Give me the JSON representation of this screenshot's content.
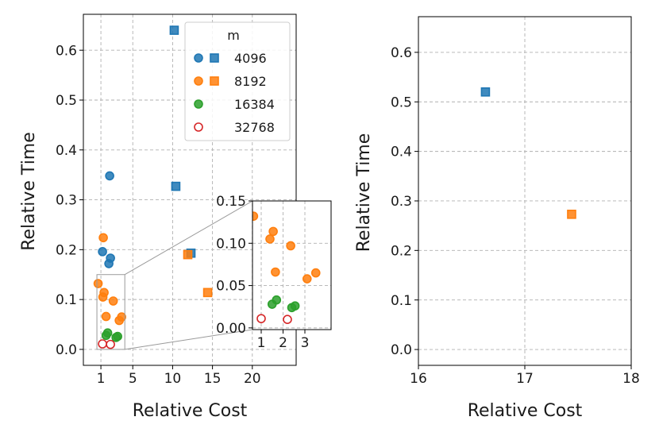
{
  "chart_data": [
    {
      "type": "scatter",
      "id": "left",
      "xlabel": "Relative Cost",
      "ylabel": "Relative Time",
      "xlim": [
        -1.2,
        25.5
      ],
      "ylim": [
        -0.032,
        0.672
      ],
      "xticks": [
        1,
        5,
        10,
        15,
        20
      ],
      "xtick_labels": [
        "1",
        "5",
        "10",
        "15",
        "20"
      ],
      "yticks": [
        0.0,
        0.1,
        0.2,
        0.3,
        0.4,
        0.5,
        0.6
      ],
      "ytick_labels": [
        "0.0",
        "0.1",
        "0.2",
        "0.3",
        "0.4",
        "0.5",
        "0.6"
      ],
      "grid": true,
      "legend": {
        "title": "m",
        "placement": "top-right",
        "entries": [
          {
            "label": "4096",
            "color": "#1f77b4",
            "markers": [
              "circle",
              "square"
            ]
          },
          {
            "label": "8192",
            "color": "#ff7f0e",
            "markers": [
              "circle",
              "square"
            ]
          },
          {
            "label": "16384",
            "color": "#2ca02c",
            "markers": [
              "circle"
            ]
          },
          {
            "label": "32768",
            "color": "#d62728",
            "markers": [
              "open-circle"
            ]
          }
        ]
      },
      "series": [
        {
          "name": "4096",
          "marker": "circle",
          "color": "#1f77b4",
          "points": [
            [
              1.2,
              0.196
            ],
            [
              2.0,
              0.172
            ],
            [
              2.2,
              0.183
            ],
            [
              2.1,
              0.348
            ]
          ]
        },
        {
          "name": "4096",
          "marker": "square",
          "color": "#1f77b4",
          "points": [
            [
              10.2,
              0.64
            ],
            [
              10.4,
              0.327
            ],
            [
              12.3,
              0.193
            ]
          ]
        },
        {
          "name": "8192",
          "marker": "circle",
          "color": "#ff7f0e",
          "points": [
            [
              0.65,
              0.132
            ],
            [
              1.25,
              0.105
            ],
            [
              1.4,
              0.114
            ],
            [
              1.3,
              0.224
            ],
            [
              1.65,
              0.066
            ],
            [
              2.55,
              0.097
            ],
            [
              3.3,
              0.058
            ],
            [
              3.6,
              0.065
            ]
          ]
        },
        {
          "name": "8192",
          "marker": "square",
          "color": "#ff7f0e",
          "points": [
            [
              11.9,
              0.19
            ],
            [
              14.4,
              0.114
            ]
          ]
        },
        {
          "name": "16384",
          "marker": "circle",
          "color": "#2ca02c",
          "points": [
            [
              1.65,
              0.028
            ],
            [
              1.85,
              0.033
            ],
            [
              2.9,
              0.024
            ],
            [
              3.1,
              0.026
            ]
          ]
        },
        {
          "name": "32768",
          "marker": "open-circle",
          "color": "#d62728",
          "points": [
            [
              1.2,
              0.011
            ],
            [
              2.2,
              0.01
            ]
          ]
        }
      ]
    },
    {
      "type": "scatter",
      "id": "inset",
      "xlim": [
        0.6,
        4.2
      ],
      "ylim": [
        -0.002,
        0.15
      ],
      "xticks": [
        1,
        2,
        3
      ],
      "xtick_labels": [
        "1",
        "2",
        "3"
      ],
      "yticks": [
        0.0,
        0.05,
        0.1,
        0.15
      ],
      "ytick_labels": [
        "0.00",
        "0.05",
        "0.10",
        "0.15"
      ],
      "grid": true,
      "zoom_region": {
        "x": [
          0.5,
          4.0
        ],
        "y": [
          0.0,
          0.15
        ]
      },
      "series": [
        {
          "name": "8192",
          "marker": "circle",
          "color": "#ff7f0e",
          "points": [
            [
              0.65,
              0.132
            ],
            [
              1.4,
              0.105
            ],
            [
              1.55,
              0.114
            ],
            [
              1.65,
              0.066
            ],
            [
              2.35,
              0.097
            ],
            [
              3.1,
              0.058
            ],
            [
              3.5,
              0.065
            ]
          ]
        },
        {
          "name": "16384",
          "marker": "circle",
          "color": "#2ca02c",
          "points": [
            [
              1.5,
              0.028
            ],
            [
              1.7,
              0.033
            ],
            [
              2.4,
              0.024
            ],
            [
              2.55,
              0.026
            ]
          ]
        },
        {
          "name": "32768",
          "marker": "open-circle",
          "color": "#d62728",
          "points": [
            [
              1.0,
              0.011
            ],
            [
              2.2,
              0.01
            ]
          ]
        }
      ]
    },
    {
      "type": "scatter",
      "id": "right",
      "xlabel": "Relative Cost",
      "ylabel": "Relative Time",
      "xlim": [
        16,
        18
      ],
      "ylim": [
        -0.032,
        0.672
      ],
      "xticks": [
        16,
        17,
        18
      ],
      "xtick_labels": [
        "16",
        "17",
        "18"
      ],
      "yticks": [
        0.0,
        0.1,
        0.2,
        0.3,
        0.4,
        0.5,
        0.6
      ],
      "ytick_labels": [
        "0.0",
        "0.1",
        "0.2",
        "0.3",
        "0.4",
        "0.5",
        "0.6"
      ],
      "grid": true,
      "series": [
        {
          "name": "4096",
          "marker": "square",
          "color": "#1f77b4",
          "points": [
            [
              16.63,
              0.52
            ]
          ]
        },
        {
          "name": "8192",
          "marker": "square",
          "color": "#ff7f0e",
          "points": [
            [
              17.44,
              0.273
            ]
          ]
        }
      ]
    }
  ]
}
